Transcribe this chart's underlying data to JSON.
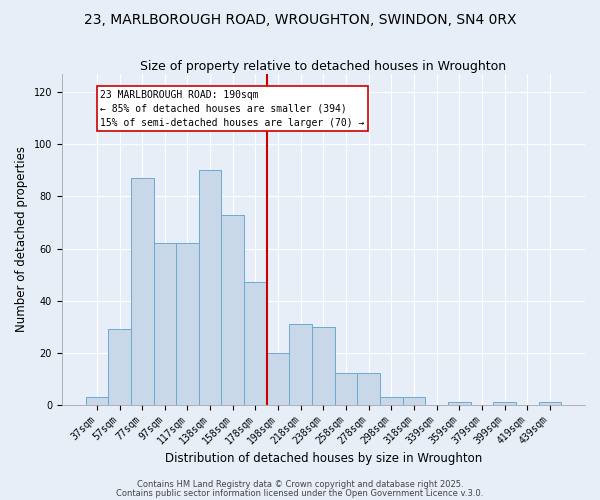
{
  "title1": "23, MARLBOROUGH ROAD, WROUGHTON, SWINDON, SN4 0RX",
  "title2": "Size of property relative to detached houses in Wroughton",
  "xlabel": "Distribution of detached houses by size in Wroughton",
  "ylabel": "Number of detached properties",
  "categories": [
    "37sqm",
    "57sqm",
    "77sqm",
    "97sqm",
    "117sqm",
    "138sqm",
    "158sqm",
    "178sqm",
    "198sqm",
    "218sqm",
    "238sqm",
    "258sqm",
    "278sqm",
    "298sqm",
    "318sqm",
    "339sqm",
    "359sqm",
    "379sqm",
    "399sqm",
    "419sqm",
    "439sqm"
  ],
  "values": [
    3,
    29,
    87,
    62,
    62,
    90,
    73,
    47,
    20,
    31,
    30,
    12,
    12,
    3,
    3,
    0,
    1,
    0,
    1,
    0,
    1
  ],
  "bar_color": "#c8d8e8",
  "bar_edge_color": "#6aaad4",
  "bar_width": 1.0,
  "vline_color": "#cc0000",
  "annotation_title": "23 MARLBOROUGH ROAD: 190sqm",
  "annotation_line1": "← 85% of detached houses are smaller (394)",
  "annotation_line2": "15% of semi-detached houses are larger (70) →",
  "annotation_box_color": "#ffffff",
  "annotation_box_edge": "#cc0000",
  "ylim": [
    0,
    127
  ],
  "yticks": [
    0,
    20,
    40,
    60,
    80,
    100,
    120
  ],
  "footer1": "Contains HM Land Registry data © Crown copyright and database right 2025.",
  "footer2": "Contains public sector information licensed under the Open Government Licence v.3.0.",
  "bg_color": "#e8eef8",
  "plot_bg_color": "#e8eef8",
  "title_fontsize": 10,
  "subtitle_fontsize": 9,
  "tick_fontsize": 7,
  "ylabel_fontsize": 8.5,
  "xlabel_fontsize": 8.5,
  "footer_fontsize": 6,
  "ann_fontsize": 7
}
